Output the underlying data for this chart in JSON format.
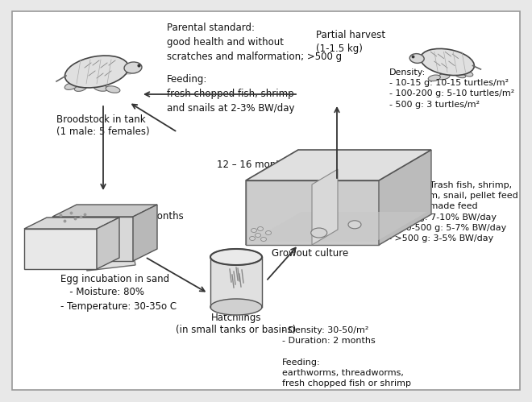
{
  "bg_color": "#e8e8e8",
  "panel_color": "#ffffff",
  "texts": {
    "broodstock_label": "Broodstock in tank\n(1 male: 5 females)",
    "parental_standard": "Parental standard:\ngood health and without\nscratches and malformation; >500 g",
    "parental_feeding": "Feeding:\nfresh chopped fish, shrimp\nand snails at 2-3% BW/day",
    "partial_harvest": "Partial harvest\n(1-1.5 kg)",
    "density_growout": "Density:\n- 10-15 g: 10-15 turtles/m²\n- 100-200 g: 5-10 turtles/m²\n- 500 g: 3 turtles/m²",
    "months_12_16": "12 – 16 months",
    "months_6": "6 months",
    "growout_label": "Growout culture",
    "feeding_growout": "Feeding: Trash fish, shrimp,\nearthworm, snail, pellet feed\nor home-made feed\n- >200g: 7-10% BW/day\n- 200-500 g: 5-7% BW/day\n- >500 g: 3-5% BW/day",
    "egg_incubation_title": "Egg incubation in sand",
    "egg_incubation_detail": "   - Moisture: 80%\n- Temperature: 30-35o C",
    "hatchlings_label": "Hatchlings\n(in small tanks or basins)",
    "hatchlings_info": "- Density: 30-50/m²\n- Duration: 2 months\n\nFeeding:\nearthworms, threadworms,\nfresh chopped fish or shrimp"
  },
  "fontsize": 8.5
}
